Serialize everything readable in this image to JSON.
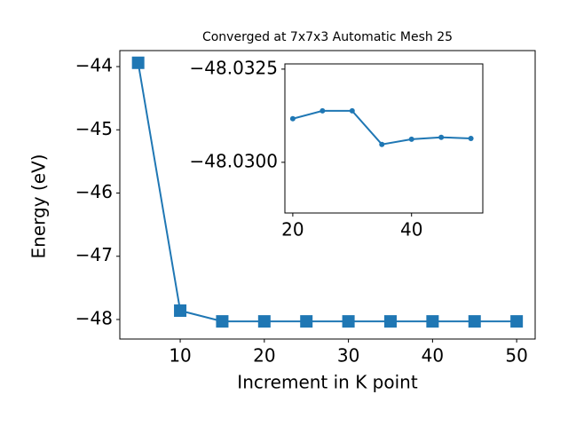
{
  "chart_data": [
    {
      "type": "line",
      "title": "Converged at 7x7x3 Automatic Mesh 25",
      "x_label": "Increment in K point",
      "y_label": "Energy (eV)",
      "x": [
        5,
        10,
        15,
        20,
        25,
        30,
        35,
        40,
        45,
        50
      ],
      "series": [
        {
          "color": "#1f77b4",
          "marker": "square",
          "values": [
            -43.94,
            -47.86,
            -48.03,
            -48.03,
            -48.03,
            -48.03,
            -48.03,
            -48.03,
            -48.03,
            -48.03
          ]
        }
      ],
      "xlim": [
        2.82,
        52.2
      ],
      "xticks": [
        10,
        20,
        30,
        40,
        50
      ],
      "ylim": [
        -48.309,
        -43.747
      ],
      "yticks": [
        {
          "value": -48,
          "label": "−48"
        },
        {
          "value": -47,
          "label": "−47"
        },
        {
          "value": -46,
          "label": "−46"
        },
        {
          "value": -45,
          "label": "−45"
        },
        {
          "value": -44,
          "label": "−44"
        }
      ]
    },
    {
      "type": "line",
      "x": [
        20,
        25,
        30,
        35,
        40,
        45,
        50
      ],
      "series": [
        {
          "color": "#1f77b4",
          "marker": "circle",
          "values": [
            -48.03117,
            -48.03138,
            -48.03138,
            -48.03048,
            -48.03062,
            -48.03067,
            -48.03064
          ]
        }
      ],
      "xlim": [
        18.67,
        52.0
      ],
      "xticks": [
        20,
        40
      ],
      "ylim": [
        -48.02864,
        -48.03264
      ],
      "yticks": [
        {
          "value": -48.0325,
          "label": "−48.0325"
        },
        {
          "value": -48.03,
          "label": "−48.0300"
        }
      ]
    }
  ]
}
